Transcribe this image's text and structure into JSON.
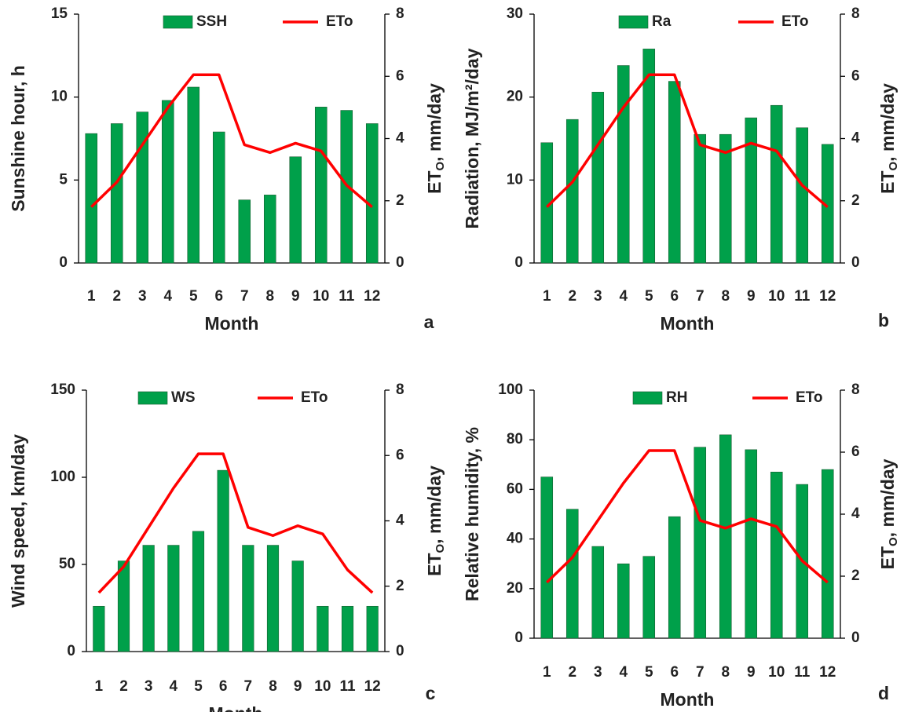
{
  "chart_data": [
    {
      "type": "combo",
      "ylabel": "Sunshine hour, h",
      "y2label": {
        "main": "ET",
        "sub": "O",
        "rest": ", mm/day"
      },
      "xlabel": "Month",
      "panel_label": "a",
      "categories": [
        "1",
        "2",
        "3",
        "4",
        "5",
        "6",
        "7",
        "8",
        "9",
        "10",
        "11",
        "12"
      ],
      "series": [
        {
          "name": "SSH",
          "type": "bar",
          "color": "#00a04a",
          "values": [
            7.8,
            8.4,
            9.1,
            9.8,
            10.6,
            7.9,
            3.8,
            4.1,
            6.4,
            9.4,
            9.2,
            8.4
          ]
        },
        {
          "name": "ETo",
          "type": "line",
          "axis": "y2",
          "color": "#ff0000",
          "values": [
            1.8,
            2.6,
            3.8,
            5.0,
            6.05,
            6.05,
            3.8,
            3.55,
            3.85,
            3.6,
            2.5,
            1.8
          ]
        }
      ],
      "ylim": [
        0,
        15
      ],
      "yticks": [
        0,
        5,
        10,
        15
      ],
      "y2lim": [
        0,
        8
      ],
      "y2ticks": [
        0,
        2,
        4,
        6,
        8
      ]
    },
    {
      "type": "combo",
      "ylabel": "Radiation, MJ/m²/day",
      "y2label": {
        "main": "ET",
        "sub": "O",
        "rest": ", mm/day"
      },
      "xlabel": "Month",
      "panel_label": "b",
      "categories": [
        "1",
        "2",
        "3",
        "4",
        "5",
        "6",
        "7",
        "8",
        "9",
        "10",
        "11",
        "12"
      ],
      "series": [
        {
          "name": "Ra",
          "type": "bar",
          "color": "#00a04a",
          "values": [
            14.5,
            17.3,
            20.6,
            23.8,
            25.8,
            21.9,
            15.5,
            15.5,
            17.5,
            19.0,
            16.3,
            14.3
          ]
        },
        {
          "name": "ETo",
          "type": "line",
          "axis": "y2",
          "color": "#ff0000",
          "values": [
            1.8,
            2.6,
            3.8,
            5.0,
            6.05,
            6.05,
            3.8,
            3.55,
            3.85,
            3.6,
            2.5,
            1.8
          ]
        }
      ],
      "ylim": [
        0,
        30
      ],
      "yticks": [
        0,
        10,
        20,
        30
      ],
      "y2lim": [
        0,
        8
      ],
      "y2ticks": [
        0,
        2,
        4,
        6,
        8
      ]
    },
    {
      "type": "combo",
      "ylabel": "Wind speed, km/day",
      "y2label": {
        "main": "ET",
        "sub": "O",
        "rest": ", mm/day"
      },
      "xlabel": "Month",
      "panel_label": "c",
      "categories": [
        "1",
        "2",
        "3",
        "4",
        "5",
        "6",
        "7",
        "8",
        "9",
        "10",
        "11",
        "12"
      ],
      "series": [
        {
          "name": "WS",
          "type": "bar",
          "color": "#00a04a",
          "values": [
            26,
            52,
            61,
            61,
            69,
            104,
            61,
            61,
            52,
            26,
            26,
            26
          ]
        },
        {
          "name": "ETo",
          "type": "line",
          "axis": "y2",
          "color": "#ff0000",
          "values": [
            1.8,
            2.6,
            3.8,
            5.0,
            6.05,
            6.05,
            3.8,
            3.55,
            3.85,
            3.6,
            2.5,
            1.8
          ]
        }
      ],
      "ylim": [
        0,
        150
      ],
      "yticks": [
        0,
        50,
        100,
        150
      ],
      "y2lim": [
        0,
        8
      ],
      "y2ticks": [
        0,
        2,
        4,
        6,
        8
      ]
    },
    {
      "type": "combo",
      "ylabel": "Relative humidity, %",
      "y2label": {
        "main": "ET",
        "sub": "O",
        "rest": ", mm/day"
      },
      "xlabel": "Month",
      "panel_label": "d",
      "categories": [
        "1",
        "2",
        "3",
        "4",
        "5",
        "6",
        "7",
        "8",
        "9",
        "10",
        "11",
        "12"
      ],
      "series": [
        {
          "name": "RH",
          "type": "bar",
          "color": "#00a04a",
          "values": [
            65,
            52,
            37,
            30,
            33,
            49,
            77,
            82,
            76,
            67,
            62,
            68
          ]
        },
        {
          "name": "ETo",
          "type": "line",
          "axis": "y2",
          "color": "#ff0000",
          "values": [
            1.8,
            2.6,
            3.8,
            5.0,
            6.05,
            6.05,
            3.8,
            3.55,
            3.85,
            3.6,
            2.5,
            1.8
          ]
        }
      ],
      "ylim": [
        0,
        100
      ],
      "yticks": [
        0,
        20,
        40,
        60,
        80,
        100
      ],
      "y2lim": [
        0,
        8
      ],
      "y2ticks": [
        0,
        2,
        4,
        6,
        8
      ]
    }
  ]
}
